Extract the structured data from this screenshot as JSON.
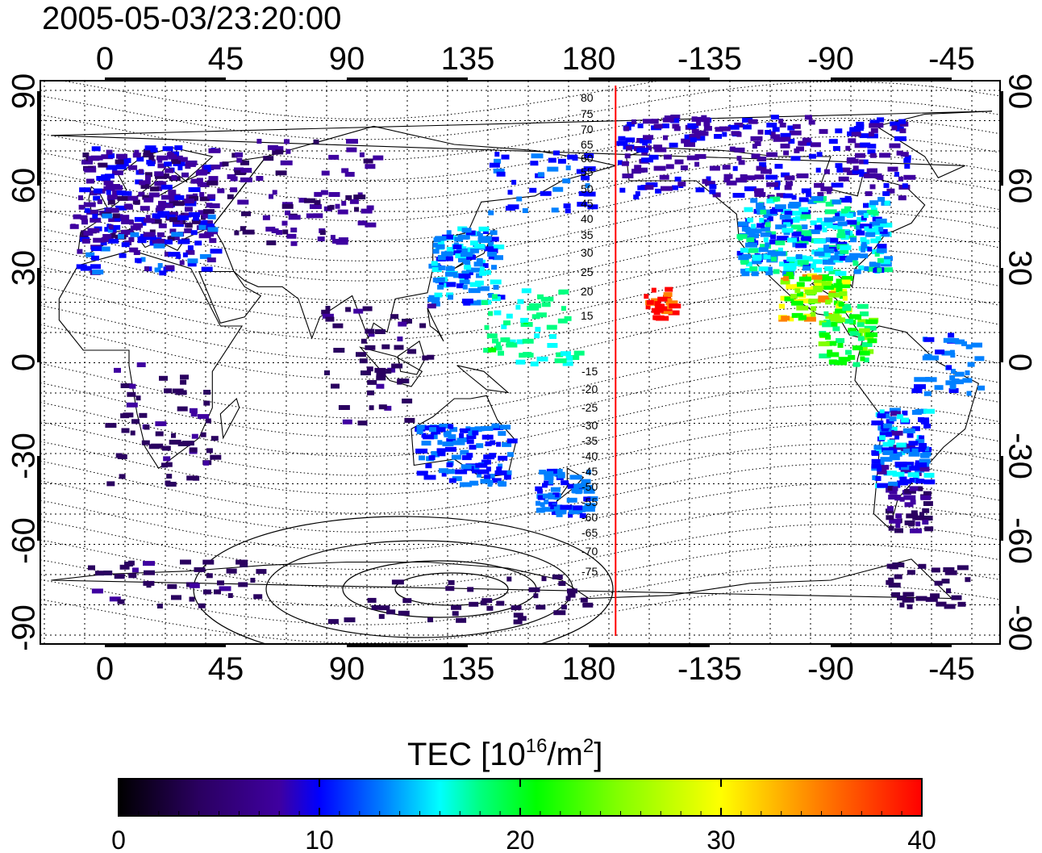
{
  "title": "2005-05-03/23:20:00",
  "axes": {
    "lon_ticks": [
      "0",
      "45",
      "90",
      "135",
      "180",
      "-135",
      "-90",
      "-45"
    ],
    "lat_ticks": [
      "90",
      "60",
      "30",
      "0",
      "-30",
      "-60",
      "-90"
    ]
  },
  "magnetic_latitude_labels": {
    "north": [
      "80",
      "75",
      "70",
      "65",
      "60",
      "55",
      "50",
      "45",
      "40",
      "35",
      "30",
      "25",
      "20",
      "15"
    ],
    "south": [
      "-15",
      "-20",
      "-25",
      "-30",
      "-35",
      "-40",
      "-45",
      "-50",
      "-55",
      "-60",
      "-65",
      "-70",
      "-75"
    ]
  },
  "terminator_longitude": 190,
  "colorbar": {
    "title_prefix": "TEC  [10",
    "title_sup1": "16",
    "title_mid": "/m",
    "title_sup2": "2",
    "title_suffix": "]",
    "min": 0,
    "max": 40,
    "tick_labels": [
      "0",
      "10",
      "20",
      "30",
      "40"
    ],
    "colors": [
      "#000000",
      "#2a0060",
      "#3f00a0",
      "#0000ff",
      "#0080ff",
      "#00ffff",
      "#00ff80",
      "#00ff00",
      "#80ff00",
      "#ffff00",
      "#ff8000",
      "#ff0000"
    ]
  },
  "colors": {
    "terminator": "#ff0000",
    "frame": "#000000",
    "grid": "#000000"
  }
}
